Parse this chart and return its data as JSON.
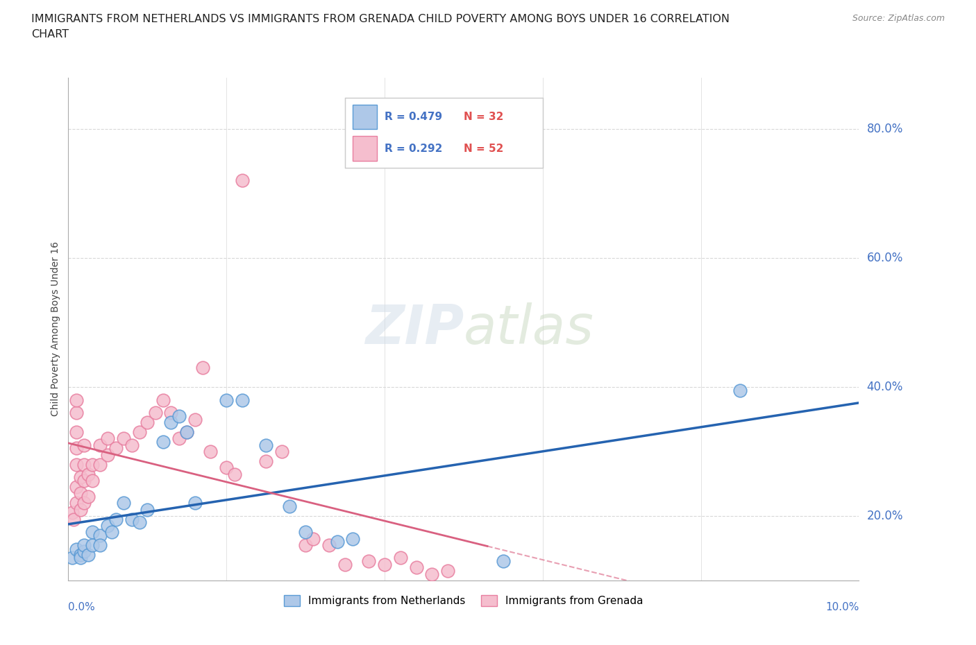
{
  "title_line1": "IMMIGRANTS FROM NETHERLANDS VS IMMIGRANTS FROM GRENADA CHILD POVERTY AMONG BOYS UNDER 16 CORRELATION",
  "title_line2": "CHART",
  "source": "Source: ZipAtlas.com",
  "ylabel": "Child Poverty Among Boys Under 16",
  "ytick_labels": [
    "20.0%",
    "40.0%",
    "60.0%",
    "80.0%"
  ],
  "ytick_values": [
    0.2,
    0.4,
    0.6,
    0.8
  ],
  "xmin": 0.0,
  "xmax": 0.1,
  "ymin": 0.1,
  "ymax": 0.88,
  "netherlands_color": "#aec8e8",
  "netherlands_edge": "#5b9bd5",
  "grenada_color": "#f5bece",
  "grenada_edge": "#e87fa0",
  "netherlands_line_color": "#2563b0",
  "grenada_line_color": "#d96080",
  "netherlands_R": "0.479",
  "netherlands_N": "32",
  "grenada_R": "0.292",
  "grenada_N": "52",
  "netherlands_scatter": [
    [
      0.0005,
      0.135
    ],
    [
      0.001,
      0.148
    ],
    [
      0.0015,
      0.14
    ],
    [
      0.0015,
      0.135
    ],
    [
      0.002,
      0.145
    ],
    [
      0.002,
      0.155
    ],
    [
      0.0025,
      0.14
    ],
    [
      0.003,
      0.155
    ],
    [
      0.003,
      0.175
    ],
    [
      0.004,
      0.17
    ],
    [
      0.004,
      0.155
    ],
    [
      0.005,
      0.185
    ],
    [
      0.0055,
      0.175
    ],
    [
      0.006,
      0.195
    ],
    [
      0.007,
      0.22
    ],
    [
      0.008,
      0.195
    ],
    [
      0.009,
      0.19
    ],
    [
      0.01,
      0.21
    ],
    [
      0.012,
      0.315
    ],
    [
      0.013,
      0.345
    ],
    [
      0.014,
      0.355
    ],
    [
      0.015,
      0.33
    ],
    [
      0.016,
      0.22
    ],
    [
      0.02,
      0.38
    ],
    [
      0.022,
      0.38
    ],
    [
      0.025,
      0.31
    ],
    [
      0.028,
      0.215
    ],
    [
      0.03,
      0.175
    ],
    [
      0.034,
      0.16
    ],
    [
      0.036,
      0.165
    ],
    [
      0.055,
      0.13
    ],
    [
      0.085,
      0.395
    ]
  ],
  "grenada_scatter": [
    [
      0.0005,
      0.205
    ],
    [
      0.0007,
      0.195
    ],
    [
      0.001,
      0.22
    ],
    [
      0.001,
      0.245
    ],
    [
      0.001,
      0.28
    ],
    [
      0.001,
      0.305
    ],
    [
      0.001,
      0.33
    ],
    [
      0.001,
      0.36
    ],
    [
      0.001,
      0.38
    ],
    [
      0.0015,
      0.21
    ],
    [
      0.0015,
      0.235
    ],
    [
      0.0015,
      0.26
    ],
    [
      0.002,
      0.22
    ],
    [
      0.002,
      0.255
    ],
    [
      0.002,
      0.28
    ],
    [
      0.002,
      0.31
    ],
    [
      0.0025,
      0.23
    ],
    [
      0.0025,
      0.265
    ],
    [
      0.003,
      0.255
    ],
    [
      0.003,
      0.28
    ],
    [
      0.004,
      0.28
    ],
    [
      0.004,
      0.31
    ],
    [
      0.005,
      0.295
    ],
    [
      0.005,
      0.32
    ],
    [
      0.006,
      0.305
    ],
    [
      0.007,
      0.32
    ],
    [
      0.008,
      0.31
    ],
    [
      0.009,
      0.33
    ],
    [
      0.01,
      0.345
    ],
    [
      0.011,
      0.36
    ],
    [
      0.012,
      0.38
    ],
    [
      0.013,
      0.36
    ],
    [
      0.014,
      0.32
    ],
    [
      0.015,
      0.33
    ],
    [
      0.016,
      0.35
    ],
    [
      0.017,
      0.43
    ],
    [
      0.018,
      0.3
    ],
    [
      0.02,
      0.275
    ],
    [
      0.021,
      0.265
    ],
    [
      0.022,
      0.72
    ],
    [
      0.025,
      0.285
    ],
    [
      0.027,
      0.3
    ],
    [
      0.03,
      0.155
    ],
    [
      0.031,
      0.165
    ],
    [
      0.033,
      0.155
    ],
    [
      0.035,
      0.125
    ],
    [
      0.038,
      0.13
    ],
    [
      0.04,
      0.125
    ],
    [
      0.042,
      0.135
    ],
    [
      0.044,
      0.12
    ],
    [
      0.046,
      0.11
    ],
    [
      0.048,
      0.115
    ]
  ],
  "background_color": "#ffffff",
  "grid_color": "#d8d8d8",
  "watermark": "ZIPatlas",
  "r_color": "#4472c4",
  "n_color": "#e05050",
  "legend_items": [
    "Immigrants from Netherlands",
    "Immigrants from Grenada"
  ]
}
